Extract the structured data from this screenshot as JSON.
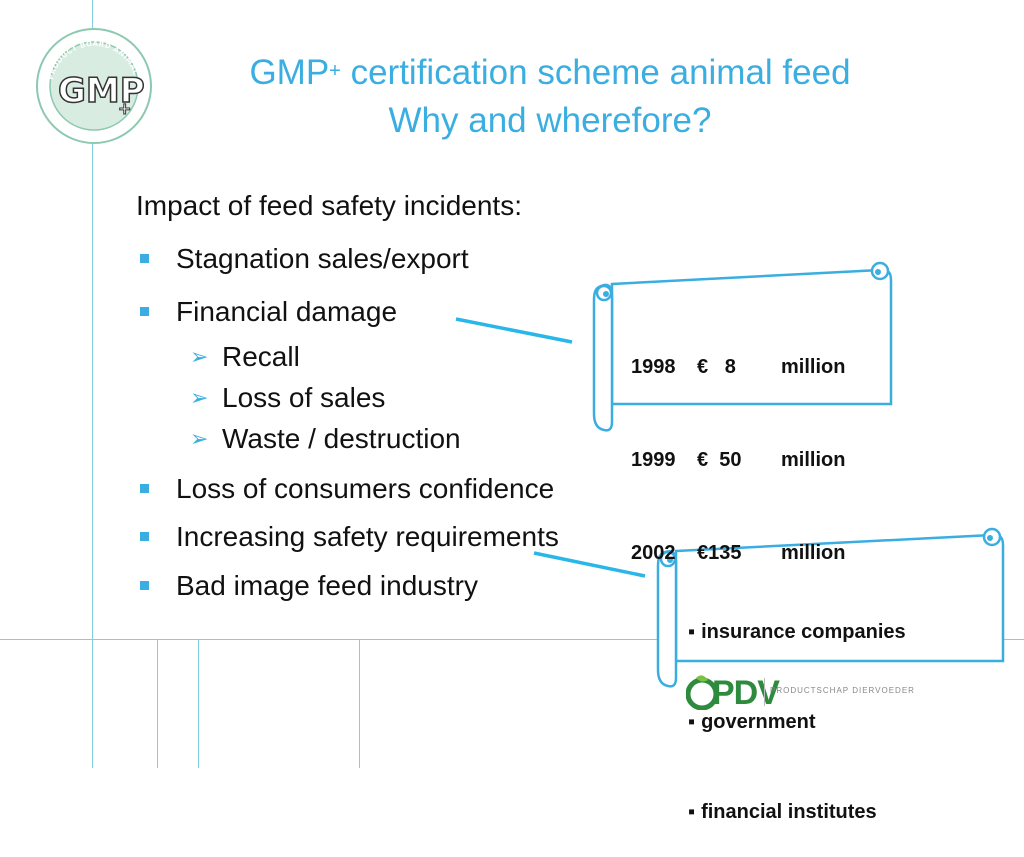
{
  "logo": {
    "ring_text": "PRODUCT BOARD ANIMAL FEED",
    "mark_text": "GMP",
    "mark_suffix": "+"
  },
  "title": {
    "line1_prefix": "GMP",
    "line1_sup": "+",
    "line1_rest": " certification scheme animal feed",
    "line2": "Why and wherefore?"
  },
  "intro": "Impact of feed safety incidents:",
  "bullets": {
    "b1": "Stagnation sales/export",
    "b2": "Financial damage",
    "b3": "Loss of consumers  confidence",
    "b4": "Increasing safety requirements",
    "b5": "Bad image feed industry"
  },
  "sub_items": {
    "s1": "Recall",
    "s2": "Loss of sales",
    "s3": "Waste / destruction"
  },
  "costs": [
    {
      "year": "1998",
      "amount": "€   8",
      "unit": "million"
    },
    {
      "year": "1999",
      "amount": "€  50",
      "unit": "million"
    },
    {
      "year": "2002",
      "amount": "€135",
      "unit": "million"
    }
  ],
  "stakeholders": {
    "s1": "insurance companies",
    "s2": "government",
    "s3": "financial institutes"
  },
  "footer": {
    "brand": "PDV",
    "tagline": "PRODUCTSCHAP DIERVOEDER"
  },
  "colors": {
    "accent": "#3aaee0",
    "grid": "#7fcfe0",
    "logo_green": "#2e8b3e"
  }
}
